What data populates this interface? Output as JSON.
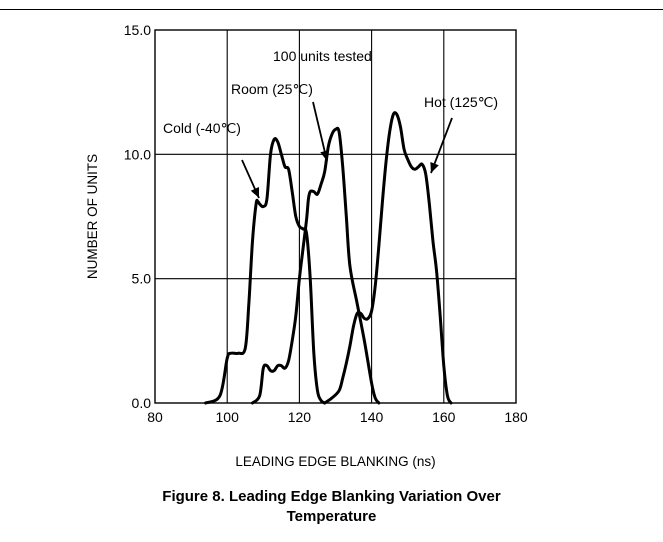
{
  "chart_data": {
    "type": "line",
    "xlabel": "LEADING EDGE BLANKING (ns)",
    "ylabel": "NUMBER OF UNITS",
    "xlim": [
      80,
      180
    ],
    "ylim": [
      0,
      15
    ],
    "x_ticks": [
      "80",
      "100",
      "120",
      "140",
      "160",
      "180"
    ],
    "y_ticks": [
      "0.0",
      "5.0",
      "10.0",
      "15.0"
    ],
    "grid": true,
    "annotations": [
      "100 units tested",
      "Cold (-40℃)",
      "Room (25℃)",
      "Hot (125℃)"
    ],
    "series": [
      {
        "name": "Cold (-40℃)",
        "x": [
          94,
          98,
          100,
          101,
          103,
          105,
          106,
          107,
          108,
          108.5,
          109,
          110,
          111,
          112,
          113,
          114,
          115,
          116,
          117,
          118,
          119,
          120,
          121,
          122,
          123,
          124,
          125,
          126,
          127
        ],
        "y": [
          0,
          0.3,
          1.8,
          2.0,
          2.0,
          2.2,
          4.0,
          6.5,
          8.0,
          8.1,
          8.0,
          7.9,
          8.2,
          10.0,
          10.6,
          10.5,
          10.0,
          9.5,
          9.4,
          8.5,
          7.5,
          7.1,
          7.0,
          6.8,
          5.0,
          2.0,
          0.5,
          0.1,
          0
        ]
      },
      {
        "name": "Room (25℃)",
        "x": [
          107,
          109,
          110,
          111,
          112,
          113,
          114,
          115,
          116,
          117,
          118,
          119,
          120,
          121,
          122,
          122.5,
          123,
          124,
          125,
          126,
          127,
          128,
          129,
          130,
          131,
          132,
          133,
          134,
          136,
          138,
          140,
          141,
          142
        ],
        "y": [
          0,
          0.3,
          1.4,
          1.5,
          1.3,
          1.3,
          1.5,
          1.5,
          1.4,
          1.7,
          2.5,
          3.5,
          5.0,
          6.2,
          7.4,
          8.2,
          8.5,
          8.5,
          8.4,
          8.8,
          9.3,
          10.3,
          10.8,
          11.0,
          10.9,
          9.5,
          7.5,
          5.5,
          4.0,
          2.5,
          0.8,
          0.2,
          0
        ]
      },
      {
        "name": "Hot (125℃)",
        "x": [
          127,
          129,
          131,
          132,
          133,
          134,
          135,
          136,
          137,
          138,
          139,
          140,
          141,
          142,
          143,
          144,
          145,
          146,
          147,
          148,
          149,
          150,
          151,
          152,
          153,
          154,
          155,
          156,
          157,
          158,
          159,
          160,
          161,
          162
        ],
        "y": [
          0,
          0.2,
          0.5,
          1.0,
          1.6,
          2.3,
          3.1,
          3.6,
          3.6,
          3.4,
          3.4,
          3.7,
          4.7,
          6.3,
          8.1,
          9.7,
          10.9,
          11.6,
          11.6,
          11.1,
          10.2,
          9.8,
          9.5,
          9.4,
          9.5,
          9.6,
          9.2,
          8.0,
          6.5,
          5.3,
          3.5,
          1.5,
          0.3,
          0
        ]
      }
    ]
  },
  "caption": {
    "line1": "Figure 8. Leading Edge Blanking Variation Over",
    "line2": "Temperature"
  }
}
